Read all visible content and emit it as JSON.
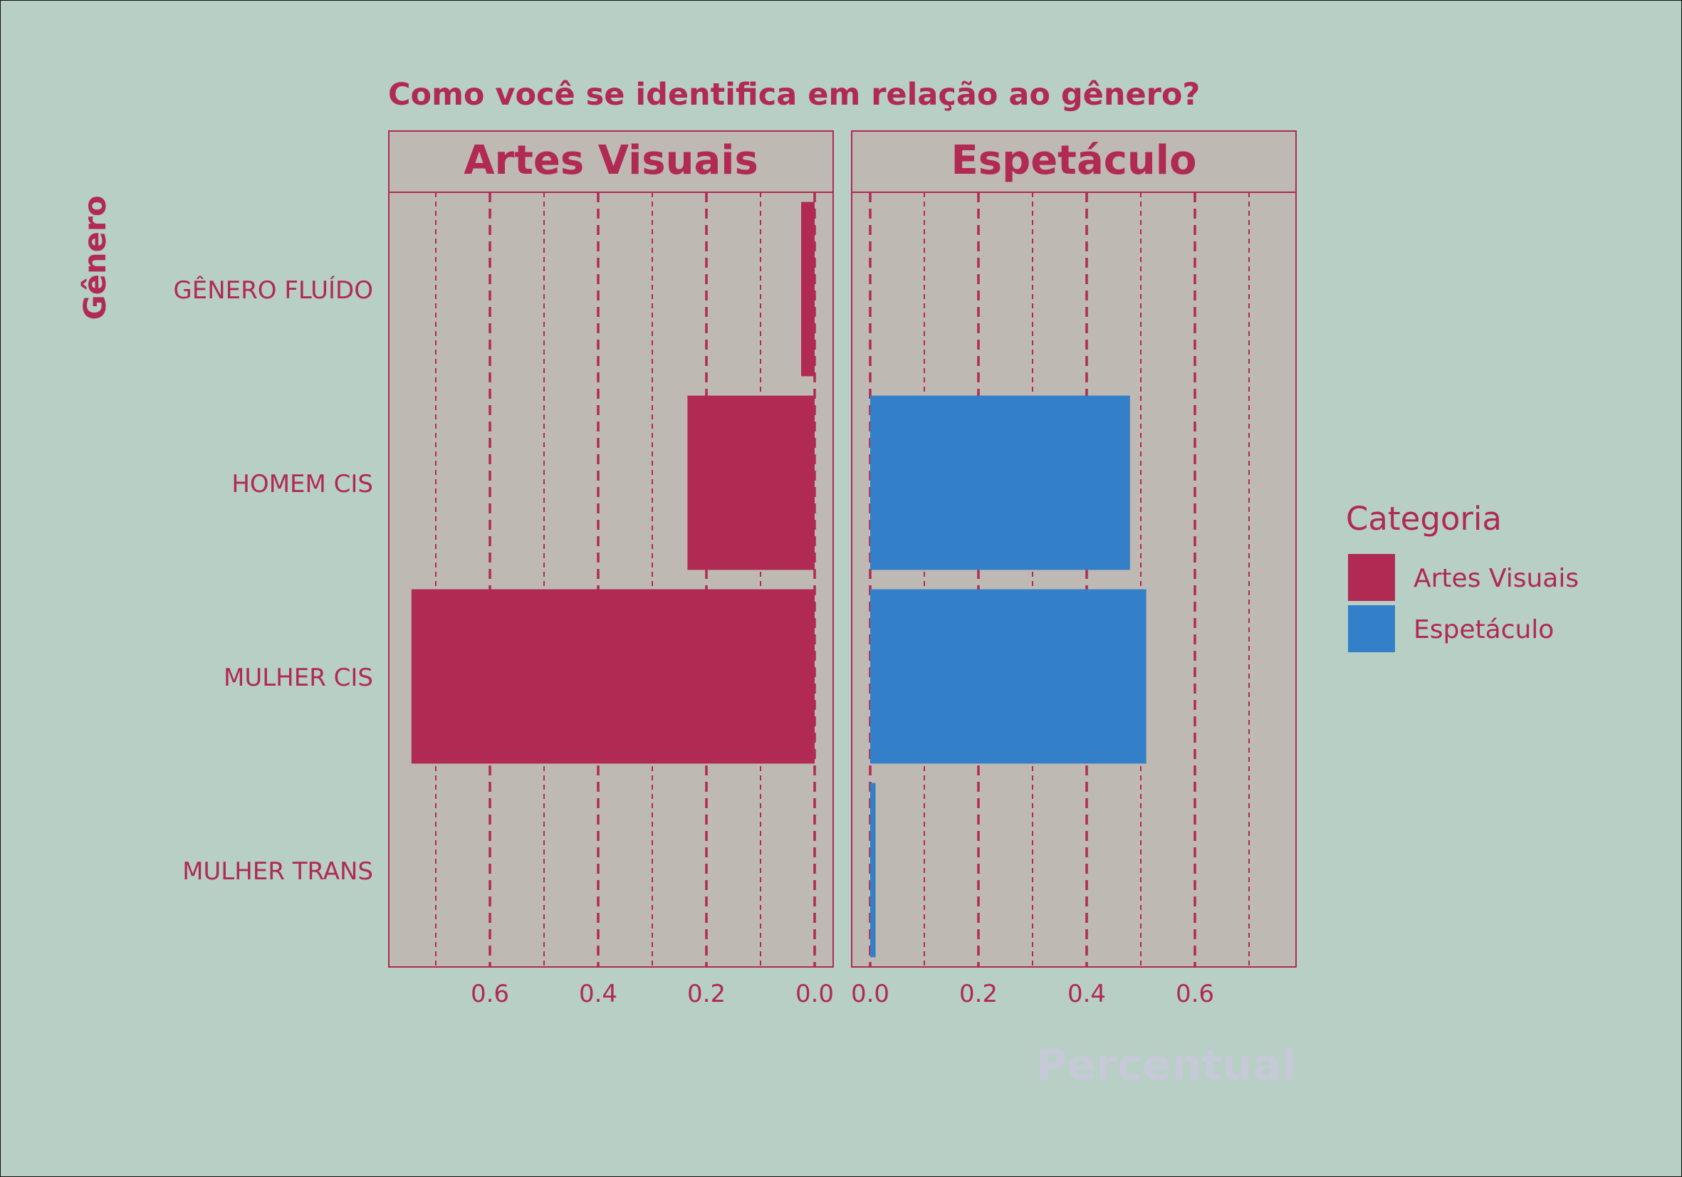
{
  "chart_data": {
    "type": "bar",
    "title": "Como você se identifica em relação ao gênero?",
    "xlabel": "Percentual",
    "ylabel": "Gênero",
    "categories": [
      "GÊNERO FLUÍDO",
      "HOMEM CIS",
      "MULHER CIS",
      "MULHER TRANS"
    ],
    "x_ticks": [
      "0.0",
      "0.2",
      "0.4",
      "0.6"
    ],
    "xlim": [
      0,
      0.78
    ],
    "grid": true,
    "legend": {
      "title": "Categoria",
      "position": "right",
      "items": [
        "Artes Visuais",
        "Espetáculo"
      ]
    },
    "panels": [
      {
        "name": "Artes Visuais",
        "direction": "reversed",
        "color": "#b02a53",
        "values": [
          0.025,
          0.235,
          0.745,
          0.0
        ]
      },
      {
        "name": "Espetáculo",
        "direction": "normal",
        "color": "#3380c9",
        "values": [
          0.0,
          0.48,
          0.51,
          0.01
        ]
      }
    ]
  },
  "colors": {
    "background": "#b8cfc5",
    "panel": "#bfb9b4",
    "accent": "#b02a53",
    "xlabel": "#c6c9d6"
  }
}
